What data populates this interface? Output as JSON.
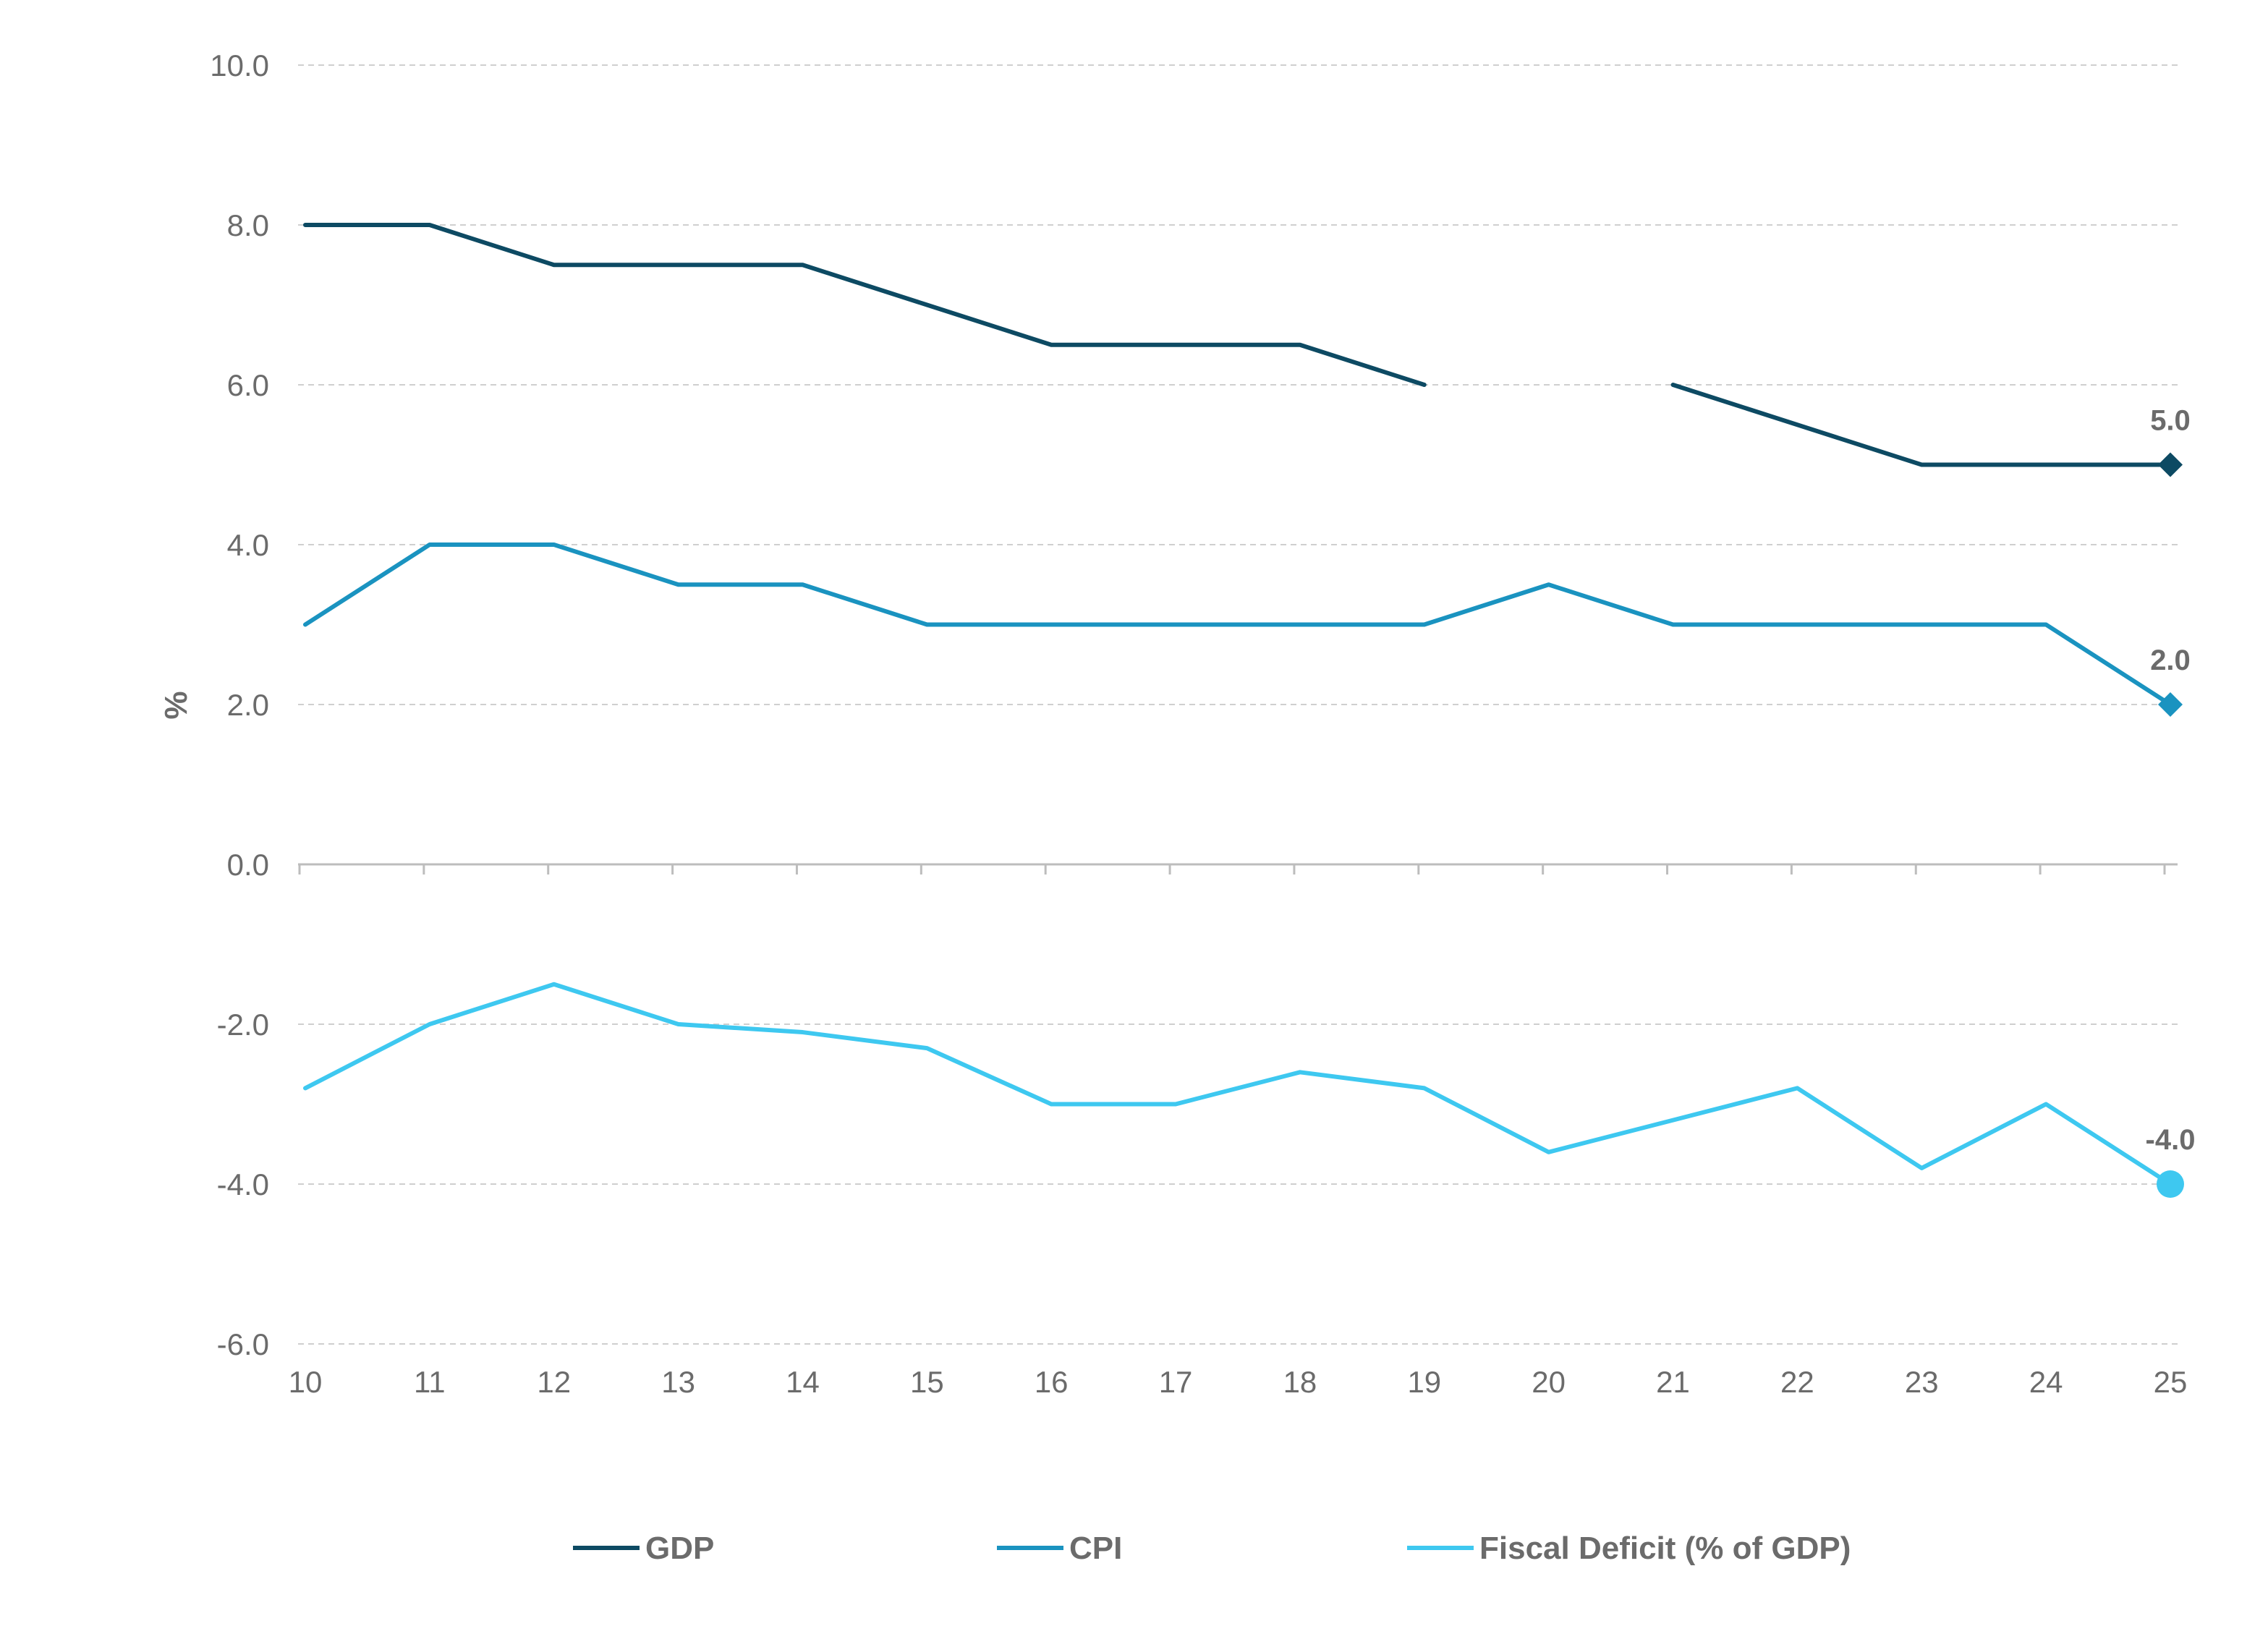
{
  "chart_data": {
    "type": "line",
    "ylabel": "%",
    "xlabel": "",
    "ylim": [
      -6,
      10
    ],
    "yticks": [
      "10.0",
      "8.0",
      "6.0",
      "4.0",
      "2.0",
      "0.0",
      "-2.0",
      "-4.0",
      "-6.0"
    ],
    "ytick_values": [
      10,
      8,
      6,
      4,
      2,
      0,
      -2,
      -4,
      -6
    ],
    "categories": [
      "10",
      "11",
      "12",
      "13",
      "14",
      "15",
      "16",
      "17",
      "18",
      "19",
      "20",
      "21",
      "22",
      "23",
      "24",
      "25"
    ],
    "grid": "horizontal dashed",
    "legend_position": "bottom",
    "series": [
      {
        "name": "GDP",
        "color": "#0d4a63",
        "end_marker": "diamond",
        "end_label": "5.0",
        "values": [
          8.0,
          8.0,
          7.5,
          7.5,
          7.5,
          7.0,
          6.5,
          6.5,
          6.5,
          6.0,
          null,
          6.0,
          5.5,
          5.0,
          5.0,
          5.0
        ]
      },
      {
        "name": "CPI",
        "color": "#1a93c0",
        "end_marker": "diamond",
        "end_label": "2.0",
        "values": [
          3.0,
          4.0,
          4.0,
          3.5,
          3.5,
          3.0,
          3.0,
          3.0,
          3.0,
          3.0,
          3.5,
          3.0,
          3.0,
          3.0,
          3.0,
          2.0
        ]
      },
      {
        "name": "Fiscal Deficit (% of GDP)",
        "color": "#3ec8f0",
        "end_marker": "circle",
        "end_label": "-4.0",
        "values": [
          -2.8,
          -2.0,
          -1.5,
          -2.0,
          -2.1,
          -2.3,
          -3.0,
          -3.0,
          -2.6,
          -2.8,
          -3.6,
          -3.2,
          -2.8,
          -3.8,
          -3.0,
          -4.0
        ]
      }
    ]
  }
}
